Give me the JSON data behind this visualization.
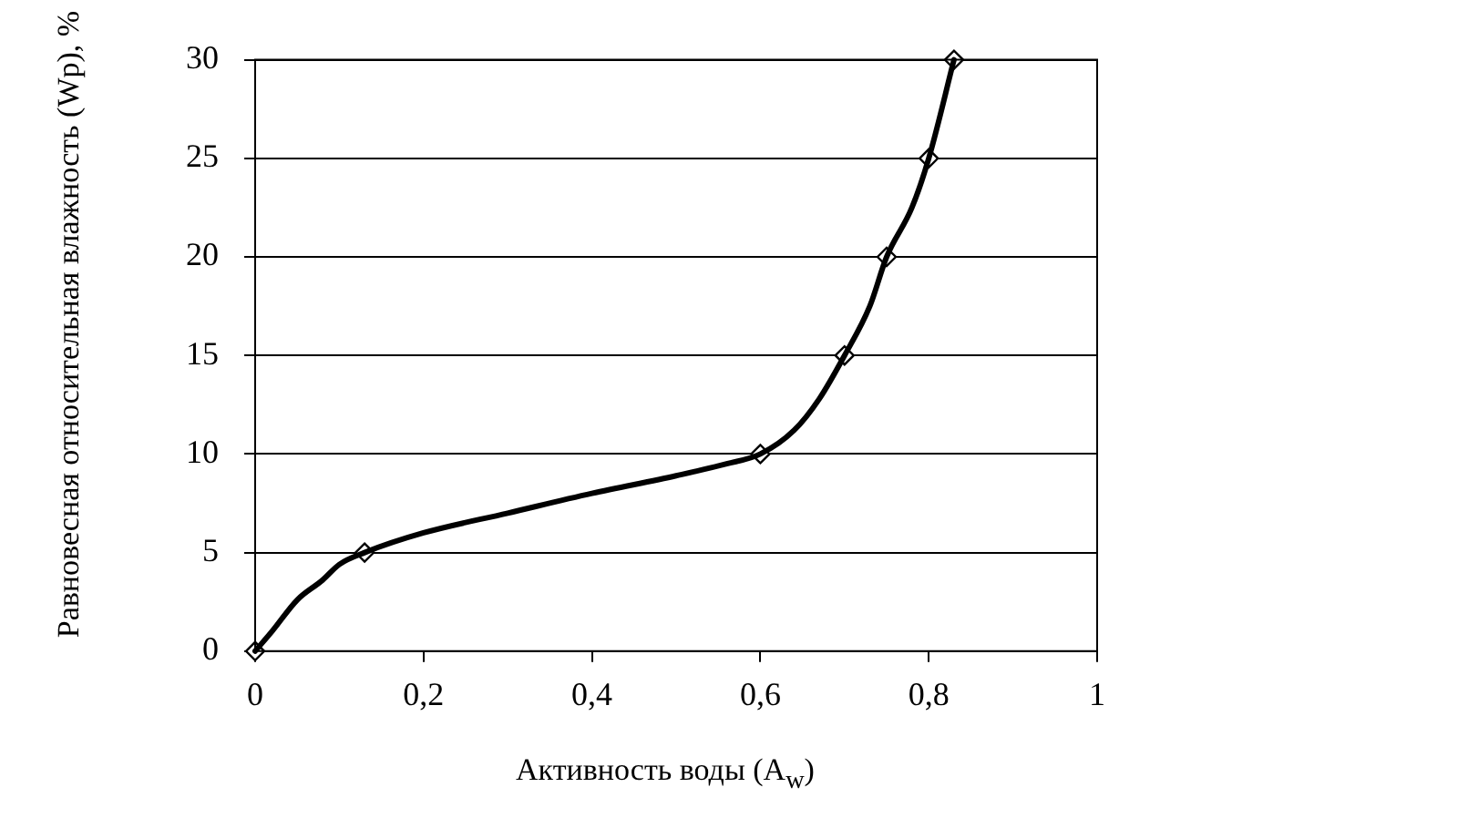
{
  "chart_data": {
    "type": "line",
    "xlabel": "Активность воды (A$_{w}$)",
    "ylabel": "Равновесная относительная влажность (Wp), %",
    "xlim": [
      0,
      1
    ],
    "xticks": [
      0,
      {
        "value": 0.2,
        "label": "0,2"
      },
      {
        "value": 0.4,
        "label": "0,4"
      },
      {
        "value": 0.6,
        "label": "0,6"
      },
      {
        "value": 0.8,
        "label": "0,8"
      },
      1
    ],
    "ylim": [
      0,
      30
    ],
    "yticks": [
      0,
      5,
      10,
      15,
      20,
      25,
      30
    ],
    "grid": "y",
    "legend": false,
    "series": [
      {
        "type": "line",
        "color": "#000000",
        "marker": "none",
        "x": [
          0,
          0.02,
          0.05,
          0.08,
          0.1,
          0.13,
          0.2,
          0.3,
          0.4,
          0.5,
          0.56,
          0.6,
          0.64,
          0.67,
          0.7,
          0.73,
          0.75,
          0.78,
          0.8,
          0.83
        ],
        "values": [
          0,
          1,
          2.6,
          3.6,
          4.4,
          5,
          6,
          7,
          8,
          8.9,
          9.5,
          10,
          11.2,
          12.8,
          15,
          17.5,
          20,
          22.5,
          25,
          30
        ]
      },
      {
        "type": "scatter",
        "color": "#ffffff",
        "marker": "diamond",
        "x": [
          0,
          0.13,
          0.6,
          0.7,
          0.75,
          0.8,
          0.83
        ],
        "values": [
          0,
          5,
          10,
          15,
          20,
          25,
          30
        ]
      }
    ]
  }
}
